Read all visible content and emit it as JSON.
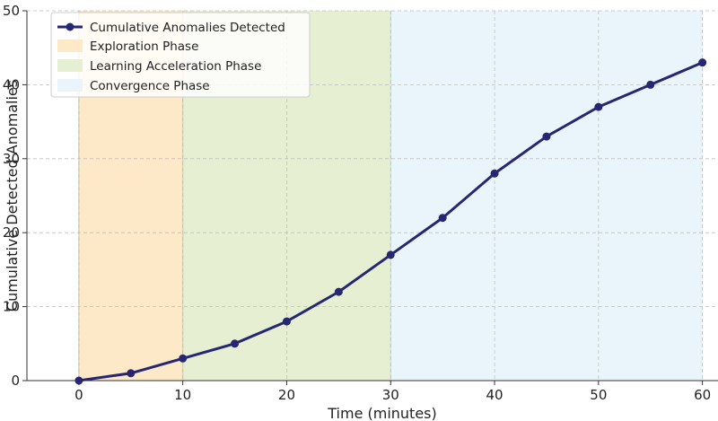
{
  "chart_data": {
    "type": "line",
    "title": "",
    "xlabel": "Time (minutes)",
    "ylabel": "Cumulative Detected Anomalies",
    "xlim": [
      -5,
      61.5
    ],
    "ylim": [
      0,
      50
    ],
    "x_ticks": [
      0,
      10,
      20,
      30,
      40,
      50,
      60
    ],
    "y_ticks": [
      0,
      10,
      20,
      30,
      40,
      50
    ],
    "grid": true,
    "legend_position": "top-left",
    "series": [
      {
        "name": "Cumulative Anomalies Detected",
        "color": "#262673",
        "x": [
          0,
          5,
          10,
          15,
          20,
          25,
          30,
          35,
          40,
          45,
          50,
          55,
          60
        ],
        "values": [
          0,
          1,
          3,
          5,
          8,
          12,
          17,
          22,
          28,
          33,
          37,
          40,
          43
        ]
      }
    ],
    "phases": [
      {
        "name": "Exploration Phase",
        "from": 0,
        "to": 10,
        "color": "#fde9c8"
      },
      {
        "name": "Learning Acceleration Phase",
        "from": 10,
        "to": 30,
        "color": "#e7efd3"
      },
      {
        "name": "Convergence Phase",
        "from": 30,
        "to": 60,
        "color": "#eaf5fb"
      }
    ]
  }
}
